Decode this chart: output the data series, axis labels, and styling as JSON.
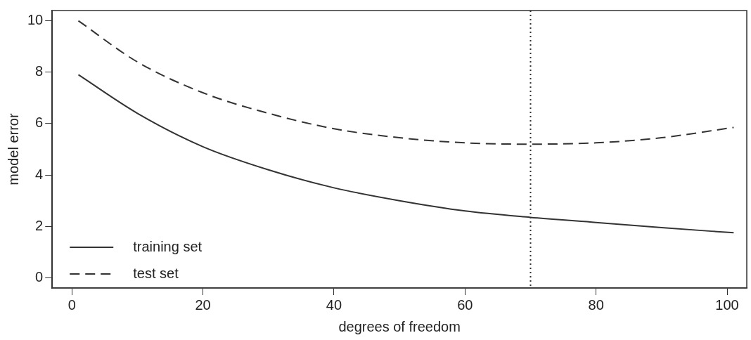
{
  "chart_data": {
    "type": "line",
    "xlabel": "degrees of freedom",
    "ylabel": "model error",
    "xlim": [
      -3,
      103
    ],
    "ylim": [
      -0.4,
      10.4
    ],
    "xticks": [
      0,
      20,
      40,
      60,
      80,
      100
    ],
    "yticks": [
      0,
      2,
      4,
      6,
      8,
      10
    ],
    "grid": false,
    "legend": "bottom left",
    "marker": "none",
    "series": [
      {
        "name": "training set",
        "color": "#333333",
        "line_style": "solid",
        "x": [
          1,
          10,
          20,
          30,
          40,
          50,
          60,
          70,
          80,
          90,
          101
        ],
        "values": [
          7.9,
          6.4,
          5.1,
          4.2,
          3.5,
          3.0,
          2.6,
          2.35,
          2.15,
          1.95,
          1.75
        ]
      },
      {
        "name": "test set",
        "color": "#333333",
        "line_style": "dashed",
        "x": [
          1,
          10,
          20,
          30,
          40,
          50,
          60,
          70,
          80,
          90,
          101
        ],
        "values": [
          10,
          8.4,
          7.2,
          6.4,
          5.8,
          5.45,
          5.25,
          5.2,
          5.25,
          5.45,
          5.85
        ]
      }
    ],
    "ref_lines": [
      {
        "axis": "x",
        "value": 70,
        "line_style": "dotted",
        "color": "#333333"
      }
    ]
  }
}
